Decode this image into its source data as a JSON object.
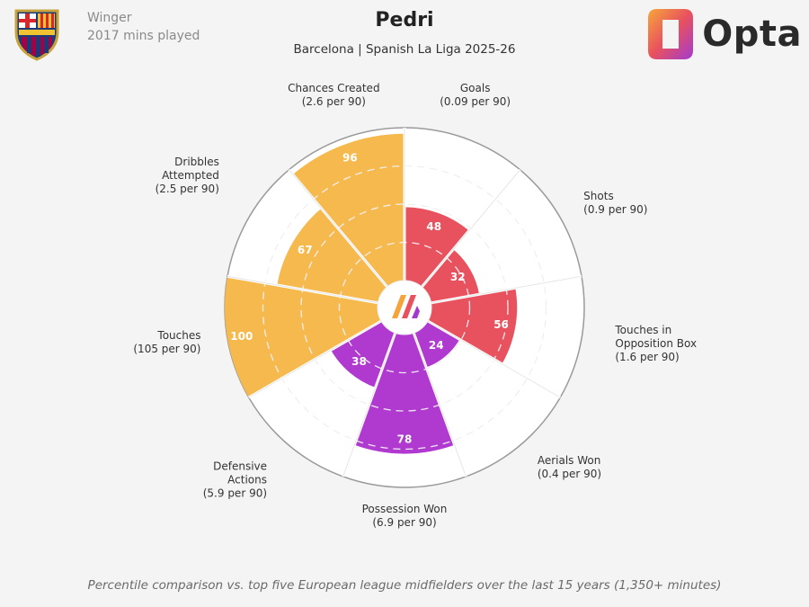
{
  "header": {
    "position": "Winger",
    "minutes": "2017 mins played",
    "player": "Pedri",
    "subtitle": "Barcelona | Spanish La Liga 2025-26",
    "brand": "Opta"
  },
  "footer": {
    "note": "Percentile comparison vs. top five European league midfielders over the last 15 years (1,350+ minutes)"
  },
  "colors": {
    "possession": "#f5b94e",
    "attacking": "#e8525e",
    "defending": "#b03ad0"
  },
  "chart_data": {
    "type": "radar",
    "scale": [
      0,
      100
    ],
    "categories": [
      {
        "lines": [
          "Goals",
          "(0.09 per 90)"
        ],
        "value": 48,
        "group": "attacking"
      },
      {
        "lines": [
          "Shots",
          "(0.9 per 90)"
        ],
        "value": 32,
        "group": "attacking"
      },
      {
        "lines": [
          "Touches in",
          "Opposition Box",
          "(1.6 per 90)"
        ],
        "value": 56,
        "group": "attacking"
      },
      {
        "lines": [
          "Aerials Won",
          "(0.4 per 90)"
        ],
        "value": 24,
        "group": "defending"
      },
      {
        "lines": [
          "Possession Won",
          "(6.9 per 90)"
        ],
        "value": 78,
        "group": "defending"
      },
      {
        "lines": [
          "Defensive",
          "Actions",
          "(5.9 per 90)"
        ],
        "value": 38,
        "group": "defending"
      },
      {
        "lines": [
          "Touches",
          "(105 per 90)"
        ],
        "value": 100,
        "group": "possession"
      },
      {
        "lines": [
          "Dribbles",
          "Attempted",
          "(2.5 per 90)"
        ],
        "value": 67,
        "group": "possession"
      },
      {
        "lines": [
          "Chances Created",
          "(2.6 per 90)"
        ],
        "value": 96,
        "group": "possession"
      }
    ]
  }
}
